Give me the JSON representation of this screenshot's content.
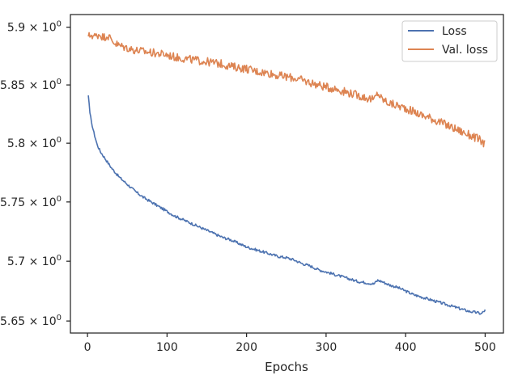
{
  "chart_data": {
    "type": "line",
    "title": "",
    "xlabel": "Epochs",
    "ylabel": "",
    "xlim": [
      -21.5,
      523
    ],
    "ylim": [
      5.64,
      5.911
    ],
    "yscale": "log",
    "grid": false,
    "legend_position": "top-right",
    "x_ticks": [
      {
        "value": 0,
        "label": "0"
      },
      {
        "value": 100,
        "label": "100"
      },
      {
        "value": 200,
        "label": "200"
      },
      {
        "value": 300,
        "label": "300"
      },
      {
        "value": 400,
        "label": "400"
      },
      {
        "value": 500,
        "label": "500"
      }
    ],
    "y_ticks": [
      {
        "value": 5.65,
        "mantissa": "5.65",
        "times": "×",
        "base": "10",
        "exp": "0"
      },
      {
        "value": 5.7,
        "mantissa": "5.7",
        "times": "×",
        "base": "10",
        "exp": "0"
      },
      {
        "value": 5.75,
        "mantissa": "5.75",
        "times": "×",
        "base": "10",
        "exp": "0"
      },
      {
        "value": 5.8,
        "mantissa": "5.8",
        "times": "×",
        "base": "10",
        "exp": "0"
      },
      {
        "value": 5.85,
        "mantissa": "5.85",
        "times": "×",
        "base": "10",
        "exp": "0"
      },
      {
        "value": 5.9,
        "mantissa": "5.9",
        "times": "×",
        "base": "10",
        "exp": "0"
      }
    ],
    "series": [
      {
        "name": "Loss",
        "color": "#4c72b0",
        "x": [
          1,
          3,
          5,
          8,
          12,
          16,
          20,
          25,
          30,
          35,
          40,
          45,
          50,
          55,
          60,
          70,
          80,
          90,
          100,
          110,
          120,
          130,
          140,
          150,
          160,
          170,
          180,
          190,
          200,
          210,
          220,
          230,
          240,
          250,
          260,
          270,
          280,
          290,
          300,
          310,
          320,
          330,
          340,
          350,
          360,
          365,
          370,
          380,
          390,
          400,
          410,
          420,
          430,
          440,
          450,
          460,
          470,
          480,
          490,
          495,
          500
        ],
        "y": [
          5.841,
          5.826,
          5.818,
          5.809,
          5.799,
          5.793,
          5.789,
          5.784,
          5.779,
          5.775,
          5.771,
          5.768,
          5.765,
          5.762,
          5.759,
          5.754,
          5.75,
          5.746,
          5.742,
          5.738,
          5.735,
          5.732,
          5.729,
          5.726,
          5.723,
          5.72,
          5.718,
          5.715,
          5.712,
          5.71,
          5.708,
          5.706,
          5.704,
          5.703,
          5.701,
          5.698,
          5.696,
          5.693,
          5.691,
          5.689,
          5.687,
          5.685,
          5.683,
          5.682,
          5.681,
          5.684,
          5.683,
          5.68,
          5.678,
          5.675,
          5.672,
          5.67,
          5.668,
          5.666,
          5.664,
          5.662,
          5.66,
          5.658,
          5.657,
          5.656,
          5.659
        ]
      },
      {
        "name": "Val. loss",
        "color": "#dd8452",
        "x": [
          1,
          5,
          10,
          15,
          20,
          25,
          30,
          35,
          40,
          50,
          60,
          70,
          80,
          90,
          100,
          110,
          120,
          130,
          140,
          150,
          160,
          170,
          180,
          190,
          200,
          210,
          220,
          230,
          240,
          250,
          260,
          270,
          280,
          290,
          300,
          310,
          320,
          330,
          340,
          350,
          360,
          365,
          370,
          380,
          390,
          400,
          410,
          420,
          430,
          440,
          450,
          460,
          470,
          480,
          490,
          495,
          500
        ],
        "y": [
          5.892,
          5.893,
          5.892,
          5.894,
          5.891,
          5.893,
          5.889,
          5.886,
          5.884,
          5.882,
          5.88,
          5.879,
          5.878,
          5.877,
          5.876,
          5.874,
          5.873,
          5.872,
          5.871,
          5.87,
          5.869,
          5.868,
          5.866,
          5.865,
          5.864,
          5.862,
          5.861,
          5.86,
          5.858,
          5.857,
          5.856,
          5.854,
          5.852,
          5.85,
          5.848,
          5.847,
          5.845,
          5.843,
          5.841,
          5.839,
          5.837,
          5.843,
          5.838,
          5.834,
          5.832,
          5.83,
          5.827,
          5.824,
          5.822,
          5.819,
          5.816,
          5.813,
          5.81,
          5.807,
          5.804,
          5.802,
          5.799
        ]
      }
    ]
  }
}
